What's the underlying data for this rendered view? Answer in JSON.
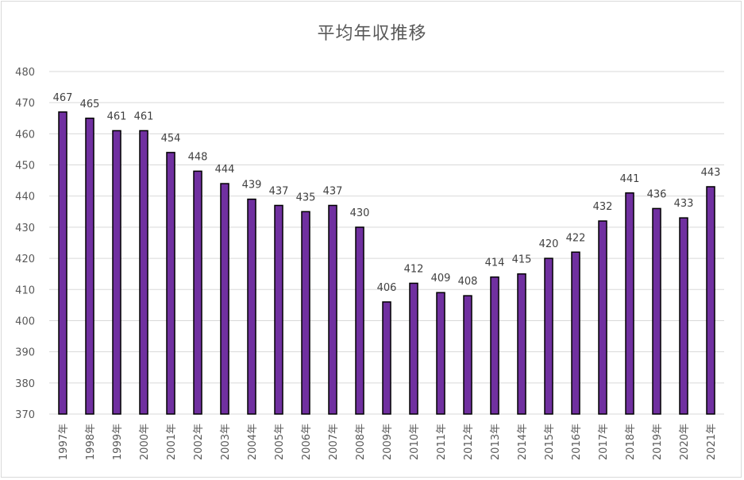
{
  "chart_data": {
    "type": "bar",
    "title": "平均年収推移",
    "xlabel": "",
    "ylabel": "",
    "ylim": [
      370,
      480
    ],
    "ytick_step": 10,
    "grid": true,
    "legend": "none",
    "bar_color": "#7030a0",
    "categories": [
      "1997年",
      "1998年",
      "1999年",
      "2000年",
      "2001年",
      "2002年",
      "2003年",
      "2004年",
      "2005年",
      "2006年",
      "2007年",
      "2008年",
      "2009年",
      "2010年",
      "2011年",
      "2012年",
      "2013年",
      "2014年",
      "2015年",
      "2016年",
      "2017年",
      "2018年",
      "2019年",
      "2020年",
      "2021年"
    ],
    "values": [
      467,
      465,
      461,
      461,
      454,
      448,
      444,
      439,
      437,
      435,
      437,
      430,
      406,
      412,
      409,
      408,
      414,
      415,
      420,
      422,
      432,
      441,
      436,
      433,
      443
    ]
  }
}
